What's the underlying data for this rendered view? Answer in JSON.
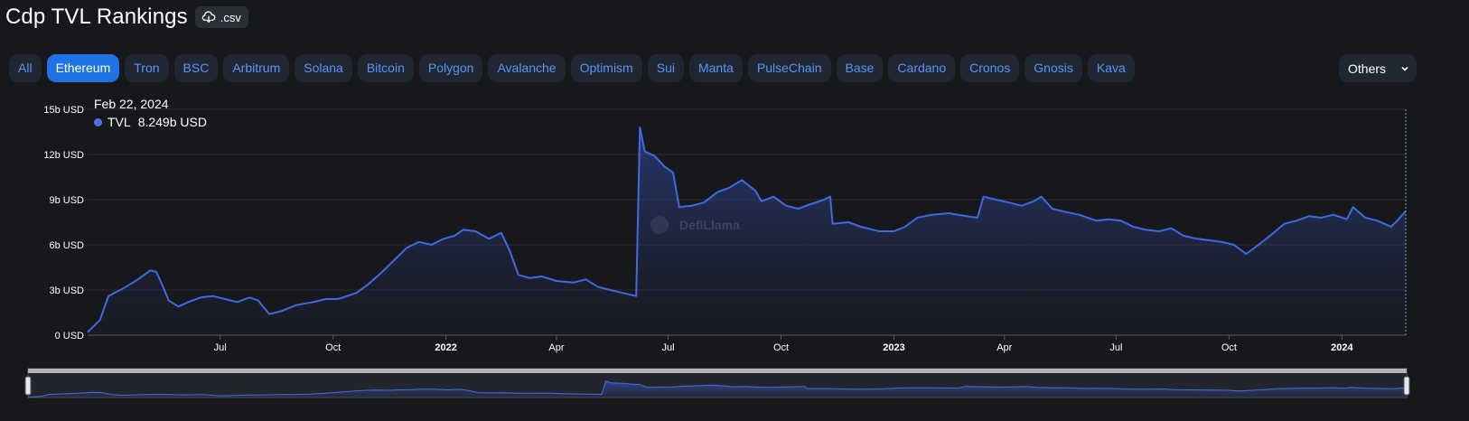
{
  "page": {
    "title": "Cdp TVL Rankings",
    "csv_label": ".csv",
    "tabs": [
      "All",
      "Ethereum",
      "Tron",
      "BSC",
      "Arbitrum",
      "Solana",
      "Bitcoin",
      "Polygon",
      "Avalanche",
      "Optimism",
      "Sui",
      "Manta",
      "PulseChain",
      "Base",
      "Cardano",
      "Cronos",
      "Gnosis",
      "Kava"
    ],
    "active_tab": "Ethereum",
    "others_label": "Others",
    "watermark": "DefiLlama"
  },
  "tooltip": {
    "date": "Feb 22, 2024",
    "series_label": "TVL",
    "value": "8.249b USD"
  },
  "colors": {
    "background": "#17181c",
    "line": "#4169e1",
    "accent": "#2172e5",
    "tab_text": "#5e93f2"
  },
  "chart_data": {
    "type": "area",
    "x_range": [
      "2021-03-15",
      "2024-02-22"
    ],
    "ylim": [
      0,
      15
    ],
    "ylabel": "",
    "y_ticks": [
      "0 USD",
      "3b USD",
      "6b USD",
      "9b USD",
      "12b USD",
      "15b USD"
    ],
    "x_ticks": [
      {
        "date": "2021-07-01",
        "label": "Jul",
        "bold": false
      },
      {
        "date": "2021-10-01",
        "label": "Oct",
        "bold": false
      },
      {
        "date": "2022-01-01",
        "label": "2022",
        "bold": true
      },
      {
        "date": "2022-04-01",
        "label": "Apr",
        "bold": false
      },
      {
        "date": "2022-07-01",
        "label": "Jul",
        "bold": false
      },
      {
        "date": "2022-10-01",
        "label": "Oct",
        "bold": false
      },
      {
        "date": "2023-01-01",
        "label": "2023",
        "bold": true
      },
      {
        "date": "2023-04-01",
        "label": "Apr",
        "bold": false
      },
      {
        "date": "2023-07-01",
        "label": "Jul",
        "bold": false
      },
      {
        "date": "2023-10-01",
        "label": "Oct",
        "bold": false
      },
      {
        "date": "2024-01-01",
        "label": "2024",
        "bold": true
      }
    ],
    "grid": true,
    "series": [
      {
        "name": "TVL",
        "points": [
          [
            "2021-03-15",
            0.2
          ],
          [
            "2021-03-25",
            1.0
          ],
          [
            "2021-04-01",
            2.6
          ],
          [
            "2021-04-15",
            3.2
          ],
          [
            "2021-04-25",
            3.7
          ],
          [
            "2021-05-05",
            4.3
          ],
          [
            "2021-05-10",
            4.2
          ],
          [
            "2021-05-15",
            3.3
          ],
          [
            "2021-05-20",
            2.3
          ],
          [
            "2021-05-28",
            1.9
          ],
          [
            "2021-06-05",
            2.2
          ],
          [
            "2021-06-15",
            2.5
          ],
          [
            "2021-06-25",
            2.6
          ],
          [
            "2021-07-05",
            2.4
          ],
          [
            "2021-07-15",
            2.2
          ],
          [
            "2021-07-25",
            2.5
          ],
          [
            "2021-08-01",
            2.3
          ],
          [
            "2021-08-10",
            1.4
          ],
          [
            "2021-08-20",
            1.6
          ],
          [
            "2021-09-01",
            2.0
          ],
          [
            "2021-09-15",
            2.2
          ],
          [
            "2021-09-25",
            2.4
          ],
          [
            "2021-10-05",
            2.4
          ],
          [
            "2021-10-20",
            2.8
          ],
          [
            "2021-10-30",
            3.4
          ],
          [
            "2021-11-10",
            4.2
          ],
          [
            "2021-11-20",
            5.0
          ],
          [
            "2021-11-30",
            5.8
          ],
          [
            "2021-12-10",
            6.2
          ],
          [
            "2021-12-20",
            6.0
          ],
          [
            "2021-12-30",
            6.4
          ],
          [
            "2022-01-08",
            6.6
          ],
          [
            "2022-01-15",
            7.0
          ],
          [
            "2022-01-25",
            6.9
          ],
          [
            "2022-02-05",
            6.4
          ],
          [
            "2022-02-15",
            6.8
          ],
          [
            "2022-02-22",
            5.6
          ],
          [
            "2022-03-01",
            4.0
          ],
          [
            "2022-03-10",
            3.8
          ],
          [
            "2022-03-20",
            3.9
          ],
          [
            "2022-04-01",
            3.6
          ],
          [
            "2022-04-15",
            3.5
          ],
          [
            "2022-04-25",
            3.7
          ],
          [
            "2022-05-05",
            3.2
          ],
          [
            "2022-05-15",
            3.0
          ],
          [
            "2022-05-25",
            2.8
          ],
          [
            "2022-06-05",
            2.6
          ],
          [
            "2022-06-08",
            13.8
          ],
          [
            "2022-06-12",
            12.2
          ],
          [
            "2022-06-20",
            11.9
          ],
          [
            "2022-06-28",
            11.2
          ],
          [
            "2022-07-05",
            10.8
          ],
          [
            "2022-07-10",
            8.5
          ],
          [
            "2022-07-20",
            8.6
          ],
          [
            "2022-07-30",
            8.8
          ],
          [
            "2022-08-10",
            9.5
          ],
          [
            "2022-08-20",
            9.8
          ],
          [
            "2022-08-30",
            10.3
          ],
          [
            "2022-09-10",
            9.6
          ],
          [
            "2022-09-15",
            8.9
          ],
          [
            "2022-09-25",
            9.2
          ],
          [
            "2022-10-05",
            8.6
          ],
          [
            "2022-10-15",
            8.4
          ],
          [
            "2022-10-25",
            8.7
          ],
          [
            "2022-11-05",
            9.0
          ],
          [
            "2022-11-10",
            9.2
          ],
          [
            "2022-11-12",
            7.4
          ],
          [
            "2022-11-25",
            7.5
          ],
          [
            "2022-12-05",
            7.2
          ],
          [
            "2022-12-20",
            6.9
          ],
          [
            "2023-01-01",
            6.9
          ],
          [
            "2023-01-10",
            7.2
          ],
          [
            "2023-01-20",
            7.8
          ],
          [
            "2023-02-01",
            8.0
          ],
          [
            "2023-02-15",
            8.1
          ],
          [
            "2023-03-01",
            7.9
          ],
          [
            "2023-03-10",
            7.8
          ],
          [
            "2023-03-15",
            9.2
          ],
          [
            "2023-03-25",
            9.0
          ],
          [
            "2023-04-05",
            8.8
          ],
          [
            "2023-04-15",
            8.6
          ],
          [
            "2023-04-25",
            8.9
          ],
          [
            "2023-05-01",
            9.2
          ],
          [
            "2023-05-10",
            8.4
          ],
          [
            "2023-05-20",
            8.2
          ],
          [
            "2023-06-01",
            8.0
          ],
          [
            "2023-06-15",
            7.6
          ],
          [
            "2023-06-25",
            7.7
          ],
          [
            "2023-07-05",
            7.6
          ],
          [
            "2023-07-15",
            7.2
          ],
          [
            "2023-07-25",
            7.0
          ],
          [
            "2023-08-05",
            6.9
          ],
          [
            "2023-08-15",
            7.1
          ],
          [
            "2023-08-25",
            6.6
          ],
          [
            "2023-09-05",
            6.4
          ],
          [
            "2023-09-15",
            6.3
          ],
          [
            "2023-09-25",
            6.2
          ],
          [
            "2023-10-05",
            6.0
          ],
          [
            "2023-10-15",
            5.4
          ],
          [
            "2023-10-25",
            6.0
          ],
          [
            "2023-11-05",
            6.7
          ],
          [
            "2023-11-15",
            7.4
          ],
          [
            "2023-11-25",
            7.6
          ],
          [
            "2023-12-05",
            7.9
          ],
          [
            "2023-12-15",
            7.8
          ],
          [
            "2023-12-25",
            8.0
          ],
          [
            "2024-01-05",
            7.7
          ],
          [
            "2024-01-10",
            8.5
          ],
          [
            "2024-01-20",
            7.8
          ],
          [
            "2024-01-30",
            7.6
          ],
          [
            "2024-02-10",
            7.2
          ],
          [
            "2024-02-15",
            7.6
          ],
          [
            "2024-02-22",
            8.249
          ]
        ]
      }
    ]
  }
}
